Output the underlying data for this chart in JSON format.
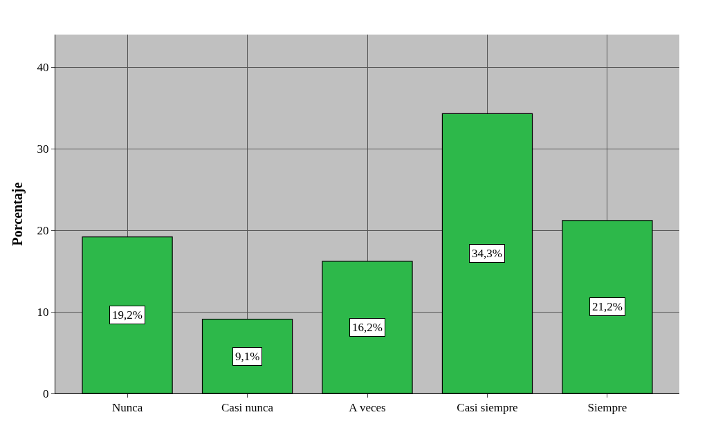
{
  "chart_data": {
    "type": "bar",
    "ylabel": "Porcentaje",
    "categories": [
      "Nunca",
      "Casi nunca",
      "A veces",
      "Casi siempre",
      "Siempre"
    ],
    "values": [
      19.2,
      9.1,
      16.2,
      34.3,
      21.2
    ],
    "value_labels": [
      "19,2%",
      "9,1%",
      "16,2%",
      "34,3%",
      "21,2%"
    ],
    "color": "#2db84a",
    "ylim": [
      0,
      44
    ],
    "yticks": [
      0,
      10,
      20,
      30,
      40
    ],
    "grid": true,
    "legend": false
  }
}
